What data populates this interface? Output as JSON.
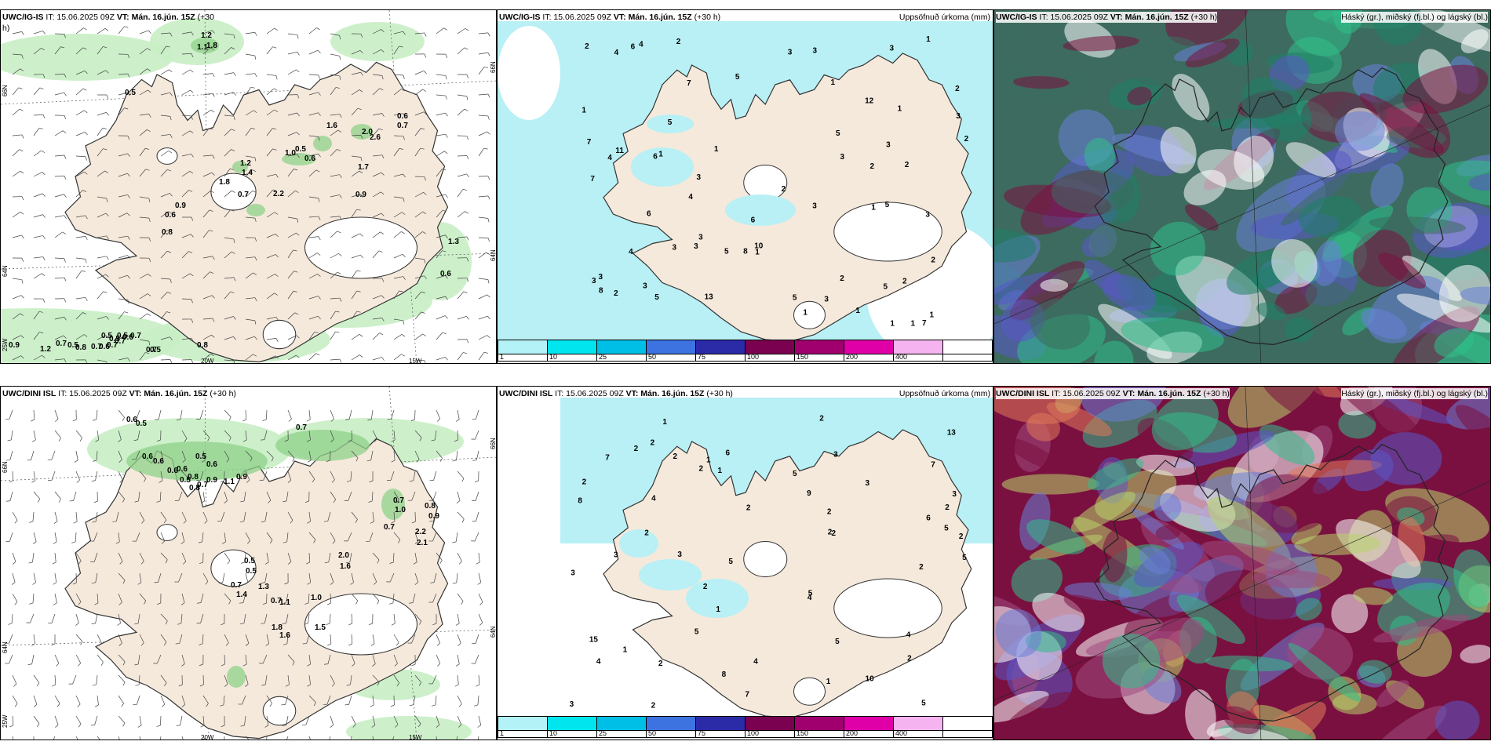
{
  "rows": [
    {
      "model": "UWC/IG-IS",
      "wind_panel": {
        "header_model": "UWC/IG-IS",
        "header_rest": " IT: 15.06.2025 09Z",
        "header_vt_label": " VT: Mán. 16.jún. 15Z",
        "header_lead": " (+30",
        "header_lead2": "h)",
        "lat_labels": [
          "66N",
          "64N",
          "25W"
        ],
        "lon_labels": [
          "20W",
          "15W"
        ],
        "right_lat": [
          "66N",
          "64N"
        ],
        "values": [
          "1.2",
          "1.1",
          "0.5",
          "1.8",
          "1.6",
          "2.0",
          "2.6",
          "0.6",
          "0.7",
          "0.5",
          "1.0",
          "0.6",
          "1.2",
          "1.4",
          "1.7",
          "1.8",
          "0.7",
          "0.9",
          "2.2",
          "0.9",
          "0.6",
          "0.8",
          "1.3",
          "0.6",
          "0.9",
          "1.2",
          "0.7",
          "0.5",
          "0.8",
          "0.7",
          "0.6",
          "0.7",
          "0.7",
          "0.6",
          "0.7",
          "0.7",
          "0.8",
          "0.5",
          "0.5",
          "0.5",
          "0.5"
        ]
      },
      "precip_panel": {
        "header_model": "UWC/IG-IS",
        "header_rest": " IT: 15.06.2025 09Z",
        "header_vt_label": " VT: Mán. 16.jún. 15Z",
        "header_lead": " (+30 h)",
        "title_right": "Uppsöfnuð úrkoma (mm)",
        "values": [
          "6",
          "6",
          "6",
          "5",
          "7",
          "7",
          "8",
          "4",
          "3",
          "2",
          "2",
          "3",
          "2",
          "1",
          "3",
          "2",
          "2",
          "2",
          "2",
          "1",
          "1",
          "1",
          "3",
          "3",
          "2",
          "3",
          "5",
          "3",
          "1",
          "3",
          "3",
          "5",
          "2",
          "2",
          "12",
          "7",
          "11",
          "4",
          "6",
          "13",
          "7",
          "1",
          "3",
          "1",
          "1",
          "8",
          "10",
          "5",
          "2",
          "1",
          "1",
          "3",
          "3",
          "3",
          "3",
          "5",
          "5",
          "4",
          "4",
          "3",
          "3",
          "5",
          "1",
          "1",
          "5",
          "4",
          "1"
        ]
      },
      "cloud_panel": {
        "header_model": "UWC/IG-IS",
        "header_rest": " IT: 15.06.2025 09Z",
        "header_vt_label": " VT: Mán. 16.jún. 15Z",
        "header_lead": " (+30 h)",
        "title_right": "Háský (gr.), miðský (fj.bl.) og lágský (bl.)"
      }
    },
    {
      "model": "UWC/DINI ISL",
      "wind_panel": {
        "header_model": "UWC/DINI ISL",
        "header_rest": " IT: 15.06.2025 09Z",
        "header_vt_label": " VT: Mán. 16.jún. 15Z",
        "header_lead": " (+30 h)",
        "lat_labels": [
          "66N",
          "64N",
          "25W"
        ],
        "lon_labels": [
          "20W",
          "15W"
        ],
        "right_lat": [
          "66N",
          "64N"
        ],
        "values": [
          "0.6",
          "0.5",
          "0.6",
          "0.6",
          "0.7",
          "0.5",
          "0.6",
          "0.6",
          "0.6",
          "0.8",
          "0.5",
          "0.7",
          "0.9",
          "1.1",
          "0.9",
          "0.8",
          "0.7",
          "1.0",
          "0.8",
          "0.9",
          "0.7",
          "2.2",
          "2.1",
          "0.5",
          "0.5",
          "2.0",
          "1.6",
          "0.7",
          "1.4",
          "1.3",
          "0.7",
          "1.1",
          "1.0",
          "1.8",
          "1.5",
          "1.6"
        ]
      },
      "precip_panel": {
        "header_model": "UWC/DINI ISL",
        "header_rest": " IT: 15.06.2025 09Z",
        "header_vt_label": " VT: Mán. 16.jún. 15Z",
        "header_lead": " (+30 h)",
        "title_right": "Uppsöfnuð úrkoma (mm)",
        "values": [
          "5",
          "5",
          "4",
          "5",
          "5",
          "6",
          "7",
          "5",
          "4",
          "3",
          "1",
          "1",
          "2",
          "5",
          "7",
          "4",
          "5",
          "5",
          "2",
          "2",
          "2",
          "2",
          "1",
          "2",
          "2",
          "1",
          "8",
          "4",
          "15",
          "13",
          "7",
          "3",
          "3",
          "9",
          "10",
          "8",
          "2",
          "6",
          "4",
          "2",
          "2",
          "1",
          "3",
          "3",
          "2",
          "2",
          "2",
          "2",
          "2",
          "2",
          "3",
          "1",
          "2",
          "2",
          "3"
        ]
      },
      "cloud_panel": {
        "header_model": "UWC/DINI ISL",
        "header_rest": " IT: 15.06.2025 09Z",
        "header_vt_label": " VT: Mán. 16.jún. 15Z",
        "header_lead": " (+30 h)",
        "title_right": "Háský (gr.), miðský (fj.bl.) og lágský (bl.)"
      }
    }
  ],
  "colorbar": {
    "labels": [
      "1",
      "10",
      "25",
      "50",
      "75",
      "100",
      "150",
      "200",
      "400",
      ""
    ],
    "colors": [
      "#b3f2f7",
      "#00e5ee",
      "#00bfe6",
      "#3c73e0",
      "#2b2ba8",
      "#7a0050",
      "#a0006e",
      "#e000a8",
      "#f5b4f0",
      "#ffffff"
    ]
  },
  "colors": {
    "land": "#f5e9dc",
    "sea": "#ffffff",
    "precip": "#b8f0f5",
    "green_light": "#c8eec4",
    "green_mid": "#8fd28a",
    "green_dark": "#2f8f3a",
    "cloud_high": "#3d6b5f",
    "cloud_mid": "#5a58c8",
    "cloud_low": "#7a1040"
  }
}
